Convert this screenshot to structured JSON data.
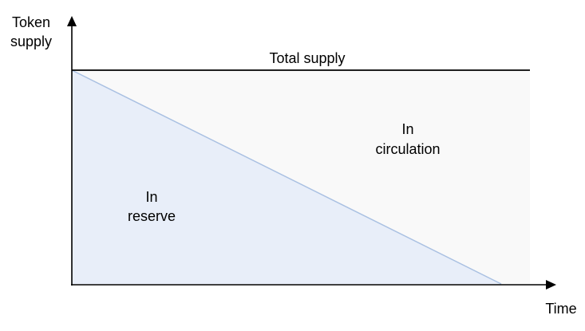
{
  "axes": {
    "y_label_line1": "Token",
    "y_label_line2": "supply",
    "x_label": "Time"
  },
  "total_supply_label": "Total supply",
  "regions": {
    "circulation": {
      "line1": "In",
      "line2": "circulation",
      "color": "#f9f9f9"
    },
    "reserve": {
      "line1": "In",
      "line2": "reserve",
      "color": "#e8eef9"
    }
  },
  "colors": {
    "axis": "#000000",
    "reserve_edge": "#a9c0e2",
    "total_supply_line": "#000000"
  }
}
